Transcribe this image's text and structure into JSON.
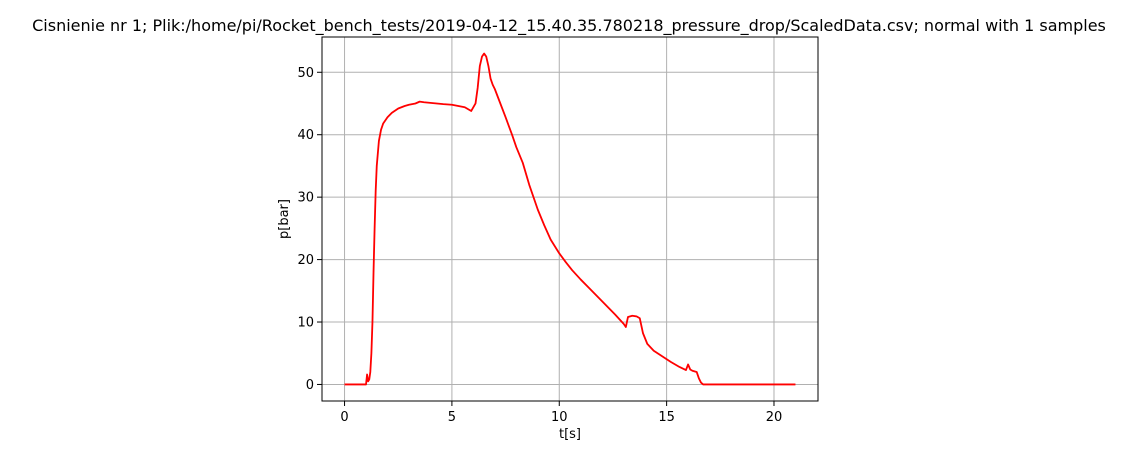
{
  "chart_data": {
    "type": "line",
    "title": "Cisnienie nr 1; Plik:/home/pi/Rocket_bench_tests/2019-04-12_15.40.35.780218_pressure_drop/ScaledData.csv; normal with 1 samples",
    "xlabel": "t[s]",
    "ylabel": "p[bar]",
    "xlim": [
      -1.05,
      22.05
    ],
    "ylim": [
      -2.65,
      55.65
    ],
    "xticks": [
      0,
      5,
      10,
      15,
      20
    ],
    "yticks": [
      0,
      10,
      20,
      30,
      40,
      50
    ],
    "xtick_labels": [
      "0",
      "5",
      "10",
      "15",
      "20"
    ],
    "ytick_labels": [
      "0",
      "10",
      "20",
      "30",
      "40",
      "50"
    ],
    "grid": true,
    "color": "#ff0000",
    "series": [
      {
        "x": [
          0,
          0.5,
          1.0,
          1.05,
          1.1,
          1.15,
          1.2,
          1.25,
          1.3,
          1.35,
          1.4,
          1.45,
          1.5,
          1.6,
          1.7,
          1.8,
          2.0,
          2.2,
          2.5,
          2.8,
          3.0,
          3.3,
          3.5,
          3.7,
          4.0,
          4.3,
          4.6,
          5.0,
          5.3,
          5.6,
          5.9,
          6.1,
          6.2,
          6.3,
          6.4,
          6.5,
          6.6,
          6.7,
          6.8,
          6.9,
          7.0,
          7.2,
          7.5,
          7.8,
          8.0,
          8.3,
          8.6,
          9.0,
          9.3,
          9.6,
          10.0,
          10.3,
          10.6,
          11.0,
          11.4,
          11.8,
          12.2,
          12.6,
          13.0,
          13.1,
          13.2,
          13.4,
          13.6,
          13.75,
          13.9,
          14.1,
          14.4,
          14.8,
          15.2,
          15.6,
          15.9,
          16.0,
          16.1,
          16.2,
          16.4,
          16.5,
          16.6,
          16.7,
          17.0,
          18.0,
          19.0,
          20.0,
          21.0
        ],
        "y": [
          0,
          0,
          0,
          1.6,
          0.5,
          0.8,
          2,
          5,
          10,
          18,
          25,
          31,
          35,
          39,
          40.8,
          41.8,
          42.8,
          43.5,
          44.2,
          44.6,
          44.8,
          45,
          45.3,
          45.2,
          45.1,
          45,
          44.9,
          44.8,
          44.6,
          44.4,
          43.8,
          45,
          47.5,
          51,
          52.5,
          53,
          52.5,
          51,
          49,
          48,
          47.3,
          45.5,
          42.8,
          40,
          38,
          35.5,
          32,
          28,
          25.5,
          23.2,
          21,
          19.6,
          18.3,
          16.8,
          15.4,
          14,
          12.6,
          11.2,
          9.7,
          9.2,
          10.8,
          11,
          10.9,
          10.6,
          8.2,
          6.5,
          5.4,
          4.5,
          3.6,
          2.8,
          2.3,
          3.2,
          2.4,
          2.2,
          2.0,
          1.0,
          0.3,
          0,
          0,
          0,
          0,
          0,
          0
        ]
      }
    ]
  }
}
